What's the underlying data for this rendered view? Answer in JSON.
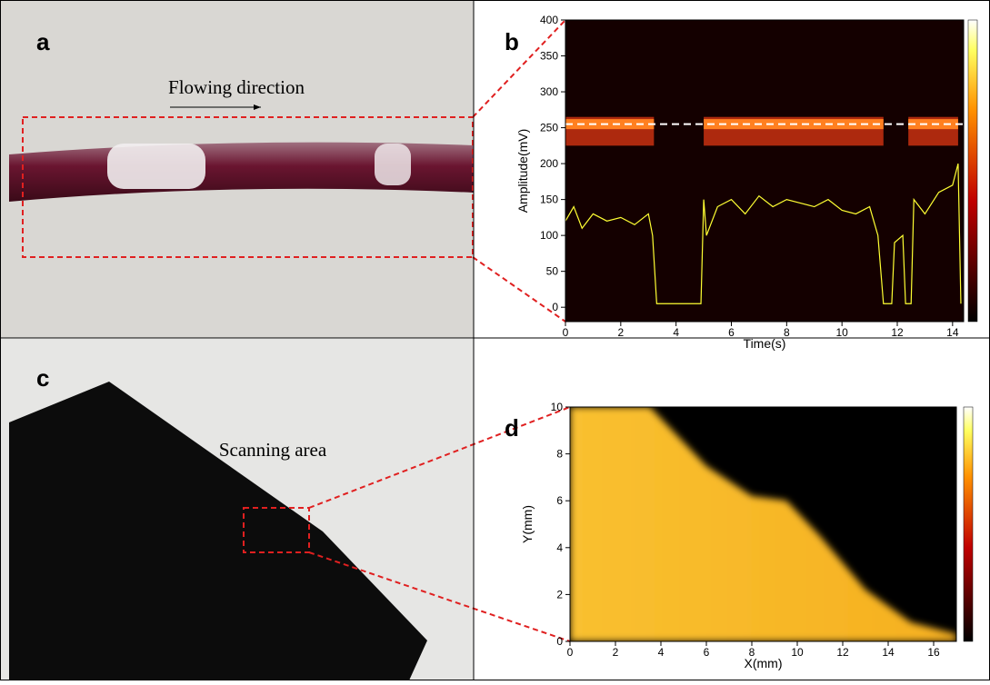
{
  "panel_labels": [
    "a",
    "b",
    "c",
    "d"
  ],
  "annotations": [
    "Flowing direction",
    "Scanning area"
  ],
  "chart_data": [
    {
      "type": "line",
      "x_label": "Time(s)",
      "y_label": "Amplitude(mV)",
      "x": [
        0,
        0.3,
        0.6,
        1,
        1.5,
        2,
        2.5,
        3,
        3.15,
        3.3,
        4.9,
        5,
        5.1,
        5.5,
        6,
        6.5,
        7,
        7.5,
        8,
        8.5,
        9,
        9.5,
        10,
        10.5,
        11,
        11.3,
        11.5,
        11.8,
        11.9,
        12.2,
        12.3,
        12.5,
        12.6,
        13,
        13.5,
        14,
        14.2,
        14.3
      ],
      "series": [
        {
          "color": "#ffff33",
          "values": [
            120,
            140,
            110,
            130,
            120,
            125,
            115,
            130,
            100,
            5,
            5,
            150,
            100,
            140,
            150,
            130,
            155,
            140,
            150,
            145,
            140,
            150,
            135,
            130,
            140,
            100,
            5,
            5,
            90,
            100,
            5,
            5,
            150,
            130,
            160,
            170,
            200,
            5
          ]
        }
      ],
      "band_intervals": [
        [
          0,
          3.2
        ],
        [
          5,
          11.5
        ],
        [
          12.4,
          14.2
        ]
      ],
      "reference_line": 255,
      "xlim": [
        0,
        14.4
      ],
      "ylim": [
        -20,
        400
      ],
      "xticks": [
        0,
        2,
        4,
        6,
        8,
        10,
        12,
        14
      ],
      "yticks": [
        0,
        50,
        100,
        150,
        200,
        250,
        300,
        350,
        400
      ]
    },
    {
      "type": "heatmap",
      "x_label": "X(mm)",
      "y_label": "Y(mm)",
      "xlim": [
        0,
        17
      ],
      "ylim": [
        0,
        10
      ],
      "xticks": [
        0,
        2,
        4,
        6,
        8,
        10,
        12,
        14,
        16
      ],
      "yticks": [
        0,
        2,
        4,
        6,
        8,
        10
      ]
    }
  ]
}
